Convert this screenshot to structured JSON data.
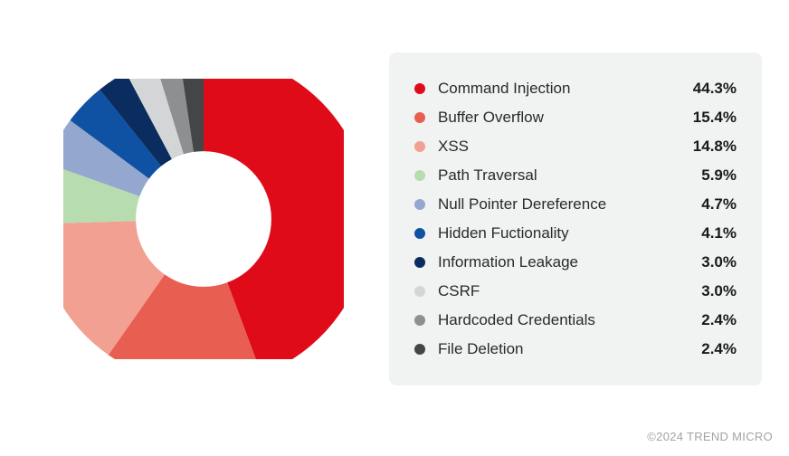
{
  "chart": {
    "type": "donut",
    "inner_radius_ratio": 0.58,
    "stroke_width": 42,
    "svg_radius": 50,
    "background_color": "#ffffff",
    "legend_background": "#f1f2f2",
    "legend_border_radius": 8,
    "label_fontsize": 17,
    "value_fontsize": 17,
    "value_fontweight": 700,
    "label_color": "#2a2a2a",
    "value_color": "#1a1a1a",
    "dot_size": 12,
    "series": [
      {
        "label": "Command Injection",
        "value": 44.3,
        "display": "44.3%",
        "color": "#e00b19"
      },
      {
        "label": "Buffer Overflow",
        "value": 15.4,
        "display": "15.4%",
        "color": "#e85f52"
      },
      {
        "label": "XSS",
        "value": 14.8,
        "display": "14.8%",
        "color": "#f2a091"
      },
      {
        "label": "Path Traversal",
        "value": 5.9,
        "display": "5.9%",
        "color": "#b7dcb0"
      },
      {
        "label": "Null Pointer Dereference",
        "value": 4.7,
        "display": "4.7%",
        "color": "#94a8cf"
      },
      {
        "label": "Hidden Fuctionality",
        "value": 4.1,
        "display": "4.1%",
        "color": "#0f51a3"
      },
      {
        "label": "Information Leakage",
        "value": 3.0,
        "display": "3.0%",
        "color": "#0a2c5e"
      },
      {
        "label": "CSRF",
        "value": 3.0,
        "display": "3.0%",
        "color": "#d4d5d6"
      },
      {
        "label": "Hardcoded Credentials",
        "value": 2.4,
        "display": "2.4%",
        "color": "#8d8f91"
      },
      {
        "label": "File Deletion",
        "value": 2.4,
        "display": "2.4%",
        "color": "#444547"
      }
    ]
  },
  "attribution": "©2024 TREND MICRO"
}
